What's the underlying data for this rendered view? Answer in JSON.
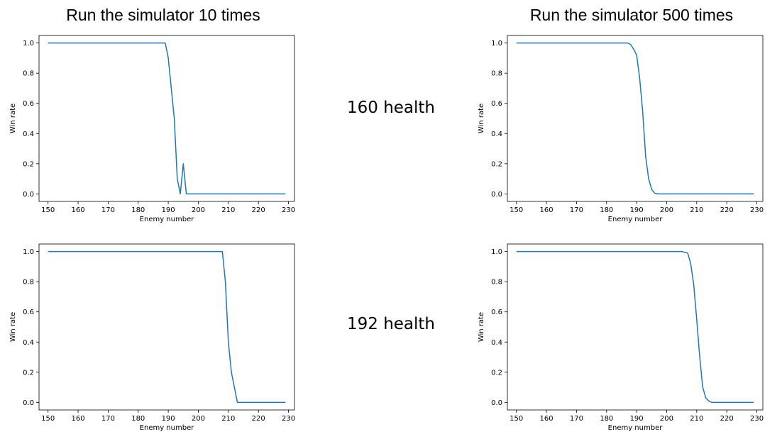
{
  "headings": {
    "left_column": "Run the simulator 10 times",
    "right_column": "Run the simulator 500 times",
    "top_row": "160 health",
    "bottom_row": "192 health"
  },
  "chart_data": [
    {
      "type": "line",
      "xlabel": "Enemy number",
      "ylabel": "Win rate",
      "xlim": [
        147,
        232
      ],
      "ylim": [
        -0.05,
        1.05
      ],
      "xticks": [
        150,
        160,
        170,
        180,
        190,
        200,
        210,
        220,
        230
      ],
      "yticks": [
        0.0,
        0.2,
        0.4,
        0.6,
        0.8,
        1.0
      ],
      "line_color": "#1f77b4",
      "series": [
        {
          "x": [
            150,
            188,
            189,
            190,
            191,
            192,
            193,
            194,
            195,
            196,
            197,
            229
          ],
          "y": [
            1.0,
            1.0,
            1.0,
            0.9,
            0.7,
            0.5,
            0.1,
            0.0,
            0.2,
            0.0,
            0.0,
            0.0
          ]
        }
      ]
    },
    {
      "type": "line",
      "xlabel": "Enemy number",
      "ylabel": "Win rate",
      "xlim": [
        147,
        232
      ],
      "ylim": [
        -0.05,
        1.05
      ],
      "xticks": [
        150,
        160,
        170,
        180,
        190,
        200,
        210,
        220,
        230
      ],
      "yticks": [
        0.0,
        0.2,
        0.4,
        0.6,
        0.8,
        1.0
      ],
      "line_color": "#1f77b4",
      "series": [
        {
          "x": [
            150,
            187,
            188,
            189,
            190,
            191,
            192,
            193,
            194,
            195,
            196,
            197,
            229
          ],
          "y": [
            1.0,
            1.0,
            0.99,
            0.96,
            0.92,
            0.77,
            0.55,
            0.25,
            0.1,
            0.03,
            0.005,
            0.0,
            0.0
          ]
        }
      ]
    },
    {
      "type": "line",
      "xlabel": "Enemy number",
      "ylabel": "Win rate",
      "xlim": [
        147,
        232
      ],
      "ylim": [
        -0.05,
        1.05
      ],
      "xticks": [
        150,
        160,
        170,
        180,
        190,
        200,
        210,
        220,
        230
      ],
      "yticks": [
        0.0,
        0.2,
        0.4,
        0.6,
        0.8,
        1.0
      ],
      "line_color": "#1f77b4",
      "series": [
        {
          "x": [
            150,
            208,
            209,
            210,
            211,
            212,
            213,
            229
          ],
          "y": [
            1.0,
            1.0,
            0.8,
            0.4,
            0.2,
            0.1,
            0.0,
            0.0
          ]
        }
      ]
    },
    {
      "type": "line",
      "xlabel": "Enemy number",
      "ylabel": "Win rate",
      "xlim": [
        147,
        232
      ],
      "ylim": [
        -0.05,
        1.05
      ],
      "xticks": [
        150,
        160,
        170,
        180,
        190,
        200,
        210,
        220,
        230
      ],
      "yticks": [
        0.0,
        0.2,
        0.4,
        0.6,
        0.8,
        1.0
      ],
      "line_color": "#1f77b4",
      "series": [
        {
          "x": [
            150,
            205,
            206,
            207,
            208,
            209,
            210,
            211,
            212,
            213,
            214,
            215,
            216,
            229
          ],
          "y": [
            1.0,
            1.0,
            0.995,
            0.99,
            0.92,
            0.78,
            0.55,
            0.3,
            0.1,
            0.03,
            0.01,
            0.0,
            0.0,
            0.0
          ]
        }
      ]
    }
  ]
}
